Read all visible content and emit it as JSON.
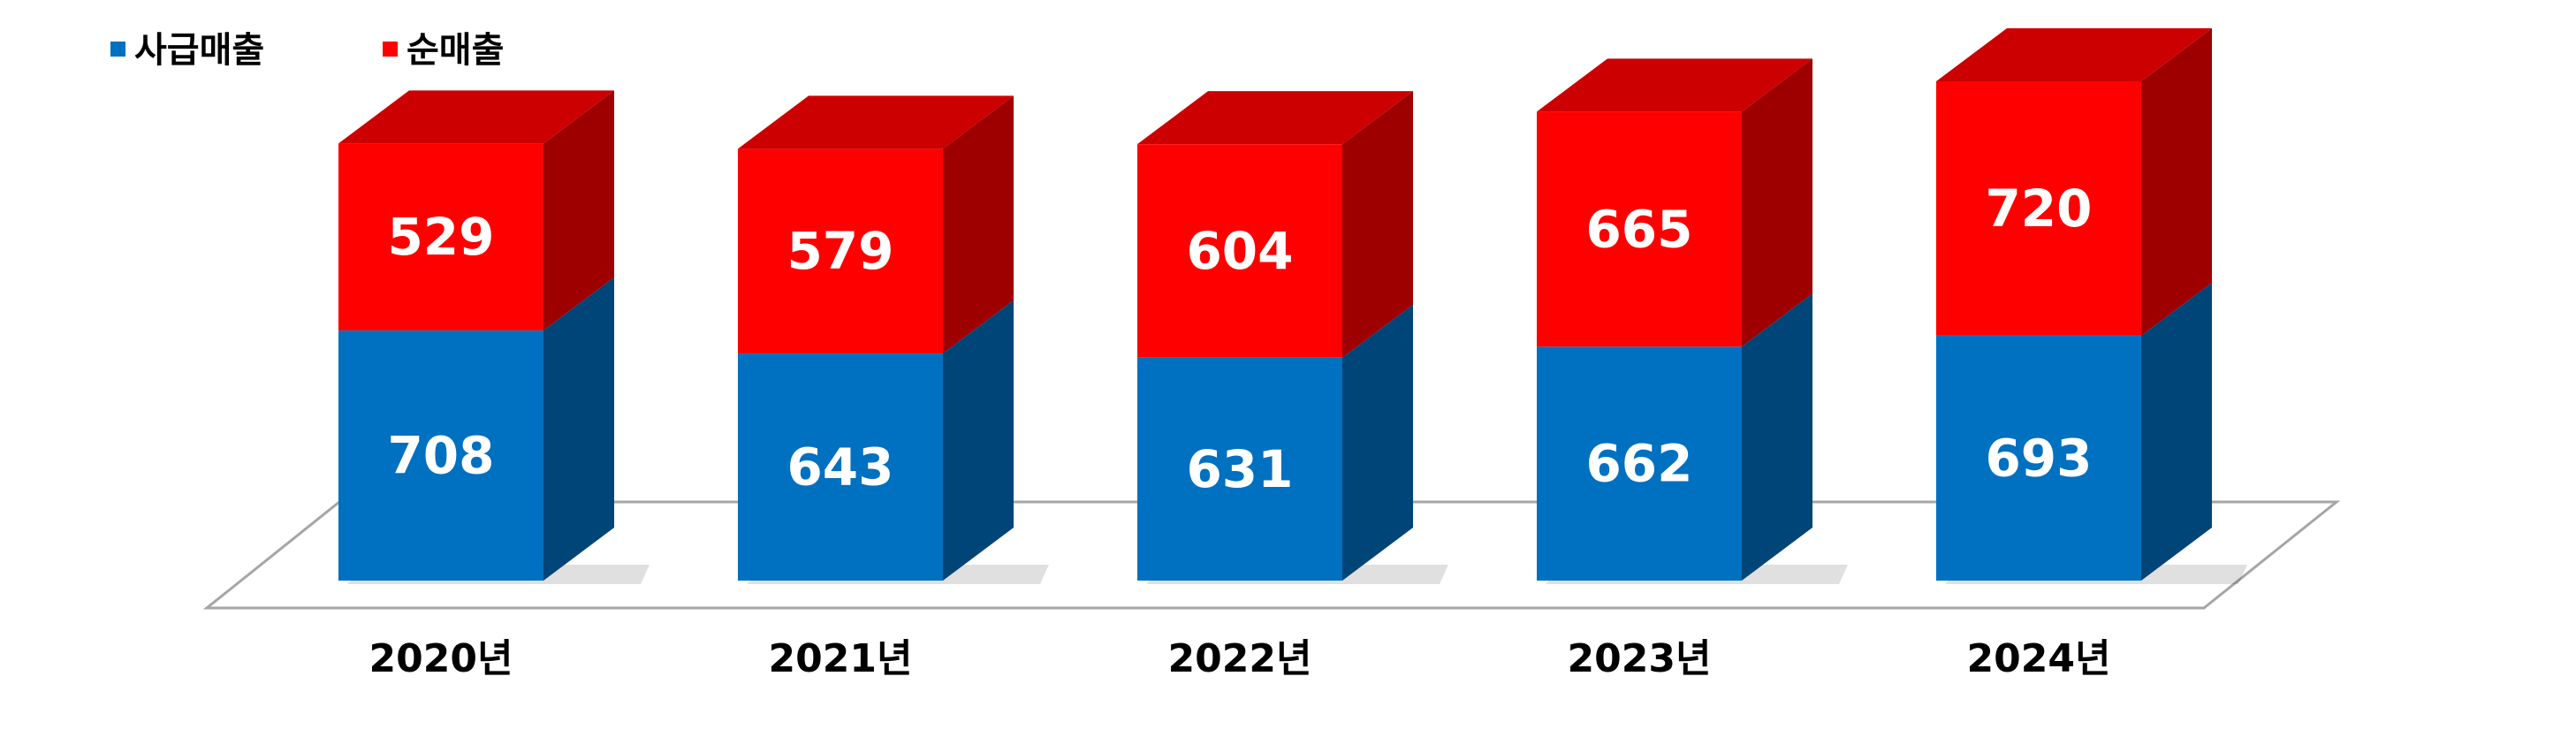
{
  "chart_data": {
    "type": "bar",
    "stacked": true,
    "three_d": true,
    "categories": [
      "2020년",
      "2021년",
      "2022년",
      "2023년",
      "2024년"
    ],
    "series": [
      {
        "name": "사급매출",
        "values": [
          708,
          643,
          631,
          662,
          693
        ],
        "color": "#0070C0"
      },
      {
        "name": "순매출",
        "values": [
          529,
          579,
          604,
          665,
          720
        ],
        "color": "#FF0000"
      }
    ],
    "ylim": [
      0,
      1413
    ],
    "legend_position": "top-left",
    "grid": false,
    "data_labels": true
  }
}
